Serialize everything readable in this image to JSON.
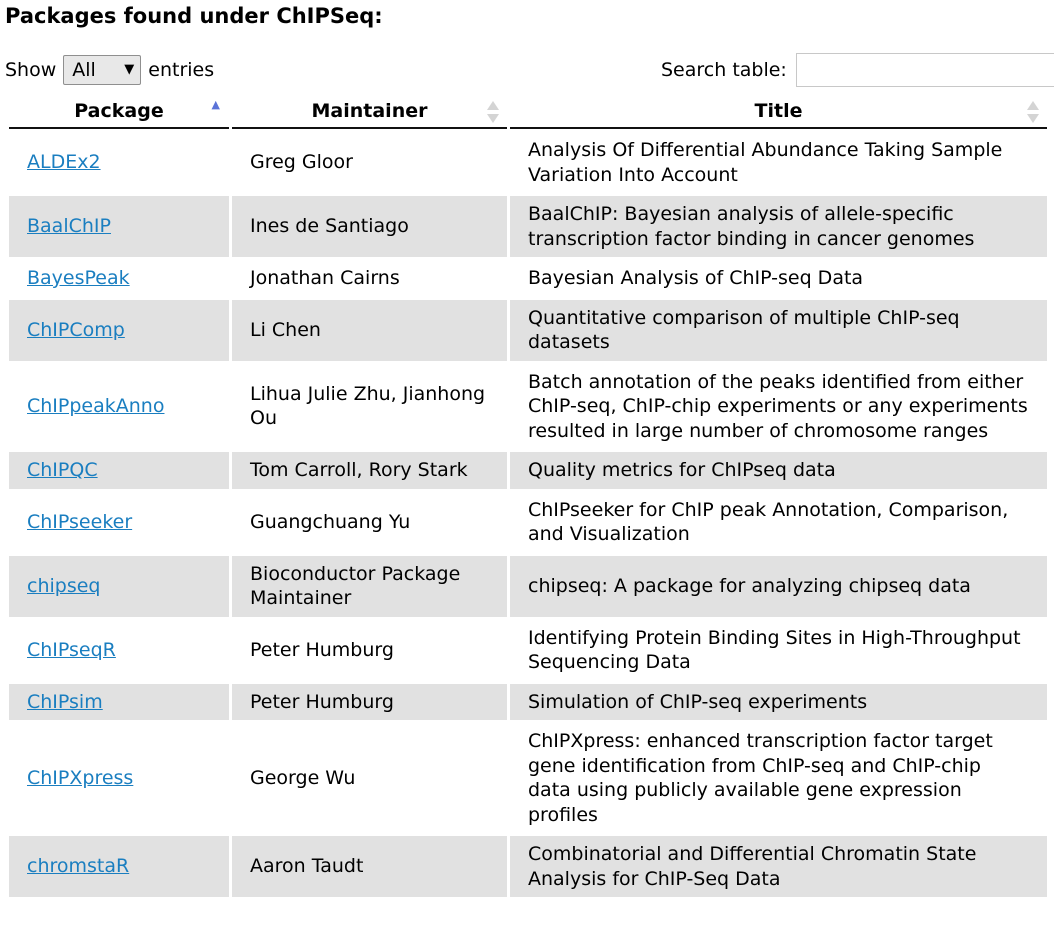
{
  "page": {
    "heading": "Packages found under ChIPSeq:",
    "show_label": "Show",
    "show_value": "All",
    "entries_label": "entries",
    "search_label": "Search table:",
    "search_value": ""
  },
  "columns": [
    {
      "label": "Package",
      "sort": "ascending"
    },
    {
      "label": "Maintainer",
      "sort": "none"
    },
    {
      "label": "Title",
      "sort": "none"
    }
  ],
  "rows": [
    {
      "package": "ALDEx2",
      "maintainer": "Greg Gloor",
      "title": "Analysis Of Differential Abundance Taking Sample Variation Into Account"
    },
    {
      "package": "BaalChIP",
      "maintainer": "Ines de Santiago",
      "title": "BaalChIP: Bayesian analysis of allele-specific transcription factor binding in cancer genomes"
    },
    {
      "package": "BayesPeak",
      "maintainer": "Jonathan Cairns",
      "title": "Bayesian Analysis of ChIP-seq Data"
    },
    {
      "package": "ChIPComp",
      "maintainer": "Li Chen",
      "title": "Quantitative comparison of multiple ChIP-seq datasets"
    },
    {
      "package": "ChIPpeakAnno",
      "maintainer": "Lihua Julie Zhu, Jianhong Ou",
      "title": "Batch annotation of the peaks identified from either ChIP-seq, ChIP-chip experiments or any experiments resulted in large number of chromosome ranges"
    },
    {
      "package": "ChIPQC",
      "maintainer": "Tom Carroll, Rory Stark",
      "title": "Quality metrics for ChIPseq data"
    },
    {
      "package": "ChIPseeker",
      "maintainer": "Guangchuang Yu",
      "title": "ChIPseeker for ChIP peak Annotation, Comparison, and Visualization"
    },
    {
      "package": "chipseq",
      "maintainer": "Bioconductor Package Maintainer",
      "title": "chipseq: A package for analyzing chipseq data"
    },
    {
      "package": "ChIPseqR",
      "maintainer": "Peter Humburg",
      "title": "Identifying Protein Binding Sites in High-Throughput Sequencing Data"
    },
    {
      "package": "ChIPsim",
      "maintainer": "Peter Humburg",
      "title": "Simulation of ChIP-seq experiments"
    },
    {
      "package": "ChIPXpress",
      "maintainer": "George Wu",
      "title": "ChIPXpress: enhanced transcription factor target gene identification from ChIP-seq and ChIP-chip data using publicly available gene expression profiles"
    },
    {
      "package": "chromstaR",
      "maintainer": "Aaron Taudt",
      "title": "Combinatorial and Differential Chromatin State Analysis for ChIP-Seq Data"
    }
  ],
  "colors": {
    "link": "#1a7ec0",
    "stripe": "#e1e1e1",
    "sort_active": "#5b73d8",
    "sort_inactive": "#d4d4d4"
  }
}
